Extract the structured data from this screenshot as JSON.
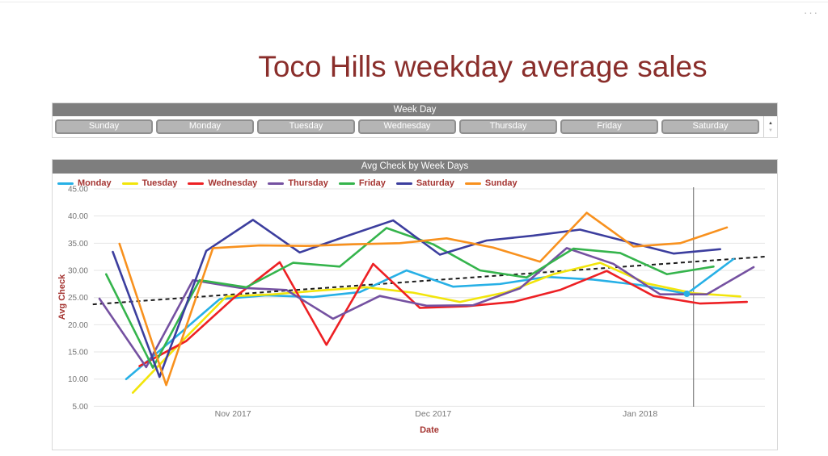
{
  "page": {
    "title": "Toco Hills weekday average sales",
    "options_menu_icon": "···"
  },
  "slicer": {
    "header": "Week Day",
    "items": [
      "Sunday",
      "Monday",
      "Tuesday",
      "Wednesday",
      "Thursday",
      "Friday",
      "Saturday"
    ],
    "scroll_up_icon": "▲",
    "scroll_down_icon": "▼"
  },
  "chart": {
    "header": "Avg Check by Week Days"
  },
  "chart_data": {
    "type": "line",
    "title": "Avg Check by Week Days",
    "xlabel": "Date",
    "ylabel": "Avg Check",
    "ylim": [
      5,
      45
    ],
    "grid": "horizontal",
    "legend_position": "top-left",
    "x_unit": "days since Oct 12 2017, weekly points per weekday",
    "y_ticks": [
      {
        "v": 45,
        "label": "45.00"
      },
      {
        "v": 40,
        "label": "40.00"
      },
      {
        "v": 35,
        "label": "35.00"
      },
      {
        "v": 30,
        "label": "30.00"
      },
      {
        "v": 25,
        "label": "25.00"
      },
      {
        "v": 20,
        "label": "20.00"
      },
      {
        "v": 15,
        "label": "15.00"
      },
      {
        "v": 10,
        "label": "10.00"
      },
      {
        "v": 5,
        "label": "5.00"
      }
    ],
    "x_ticks": [
      {
        "day": 20,
        "label": "Nov 2017"
      },
      {
        "day": 50,
        "label": "Dec 2017"
      },
      {
        "day": 81,
        "label": "Jan 2018"
      }
    ],
    "series": [
      {
        "name": "Monday",
        "color": "#27B0E6",
        "points": [
          [
            4,
            10.0
          ],
          [
            11,
            17.3
          ],
          [
            18,
            24.7
          ],
          [
            25,
            25.4
          ],
          [
            32,
            25.1
          ],
          [
            39,
            26.0
          ],
          [
            46,
            30.0
          ],
          [
            53,
            27.0
          ],
          [
            60,
            27.5
          ],
          [
            67,
            28.8
          ],
          [
            74,
            28.3
          ],
          [
            81,
            27.3
          ],
          [
            88,
            25.7
          ],
          [
            95,
            32.1
          ]
        ]
      },
      {
        "name": "Tuesday",
        "color": "#F2E50B",
        "points": [
          [
            5,
            7.5
          ],
          [
            12,
            16.5
          ],
          [
            19,
            25.2
          ],
          [
            26,
            25.6
          ],
          [
            33,
            26.3
          ],
          [
            40,
            26.9
          ],
          [
            47,
            25.9
          ],
          [
            54,
            24.2
          ],
          [
            61,
            26.0
          ],
          [
            68,
            29.3
          ],
          [
            75,
            31.4
          ],
          [
            82,
            27.6
          ],
          [
            89,
            25.8
          ],
          [
            96,
            25.2
          ]
        ]
      },
      {
        "name": "Wednesday",
        "color": "#ED2024",
        "points": [
          [
            6,
            12.4
          ],
          [
            13,
            17.0
          ],
          [
            20,
            24.8
          ],
          [
            27,
            31.5
          ],
          [
            34,
            16.3
          ],
          [
            41,
            31.2
          ],
          [
            48,
            23.1
          ],
          [
            55,
            23.4
          ],
          [
            62,
            24.2
          ],
          [
            69,
            26.4
          ],
          [
            76,
            29.9
          ],
          [
            83,
            25.3
          ],
          [
            90,
            23.9
          ],
          [
            97,
            24.2
          ]
        ]
      },
      {
        "name": "Thursday",
        "color": "#7551A1",
        "points": [
          [
            0,
            24.8
          ],
          [
            7,
            12.2
          ],
          [
            14,
            28.2
          ],
          [
            21,
            26.8
          ],
          [
            28,
            26.4
          ],
          [
            35,
            21.1
          ],
          [
            42,
            25.3
          ],
          [
            49,
            23.5
          ],
          [
            56,
            23.6
          ],
          [
            63,
            26.7
          ],
          [
            70,
            34.1
          ],
          [
            77,
            31.2
          ],
          [
            84,
            25.6
          ],
          [
            91,
            25.6
          ],
          [
            98,
            30.6
          ]
        ]
      },
      {
        "name": "Friday",
        "color": "#35B44C",
        "points": [
          [
            1,
            29.3
          ],
          [
            8,
            12.1
          ],
          [
            15,
            28.2
          ],
          [
            22,
            26.9
          ],
          [
            29,
            31.4
          ],
          [
            36,
            30.7
          ],
          [
            43,
            37.8
          ],
          [
            50,
            34.8
          ],
          [
            57,
            30.0
          ],
          [
            64,
            28.7
          ],
          [
            71,
            34.0
          ],
          [
            78,
            33.2
          ],
          [
            85,
            29.3
          ],
          [
            92,
            30.7
          ]
        ]
      },
      {
        "name": "Saturday",
        "color": "#3C3E9E",
        "points": [
          [
            2,
            33.4
          ],
          [
            9,
            10.4
          ],
          [
            16,
            33.6
          ],
          [
            23,
            39.3
          ],
          [
            30,
            33.3
          ],
          [
            37,
            36.3
          ],
          [
            44,
            39.2
          ],
          [
            51,
            32.9
          ],
          [
            58,
            35.5
          ],
          [
            65,
            36.4
          ],
          [
            72,
            37.5
          ],
          [
            79,
            35.3
          ],
          [
            86,
            33.1
          ],
          [
            93,
            33.9
          ]
        ]
      },
      {
        "name": "Sunday",
        "color": "#F8911E",
        "points": [
          [
            3,
            34.9
          ],
          [
            10,
            8.9
          ],
          [
            17,
            34.1
          ],
          [
            24,
            34.6
          ],
          [
            31,
            34.5
          ],
          [
            38,
            34.8
          ],
          [
            45,
            35.0
          ],
          [
            52,
            35.9
          ],
          [
            59,
            34.2
          ],
          [
            66,
            31.6
          ],
          [
            73,
            40.6
          ],
          [
            80,
            34.4
          ],
          [
            87,
            35.0
          ],
          [
            94,
            37.9
          ]
        ]
      }
    ],
    "trend_line": {
      "color": "#1A1A1A",
      "style": "dashed",
      "points": [
        [
          -1,
          23.75
        ],
        [
          100,
          32.55
        ]
      ]
    },
    "reference_line": {
      "day": 89,
      "color": "#808080"
    },
    "highlight_marker": {
      "series": "Monday",
      "day": 88,
      "value": 25.7
    }
  }
}
